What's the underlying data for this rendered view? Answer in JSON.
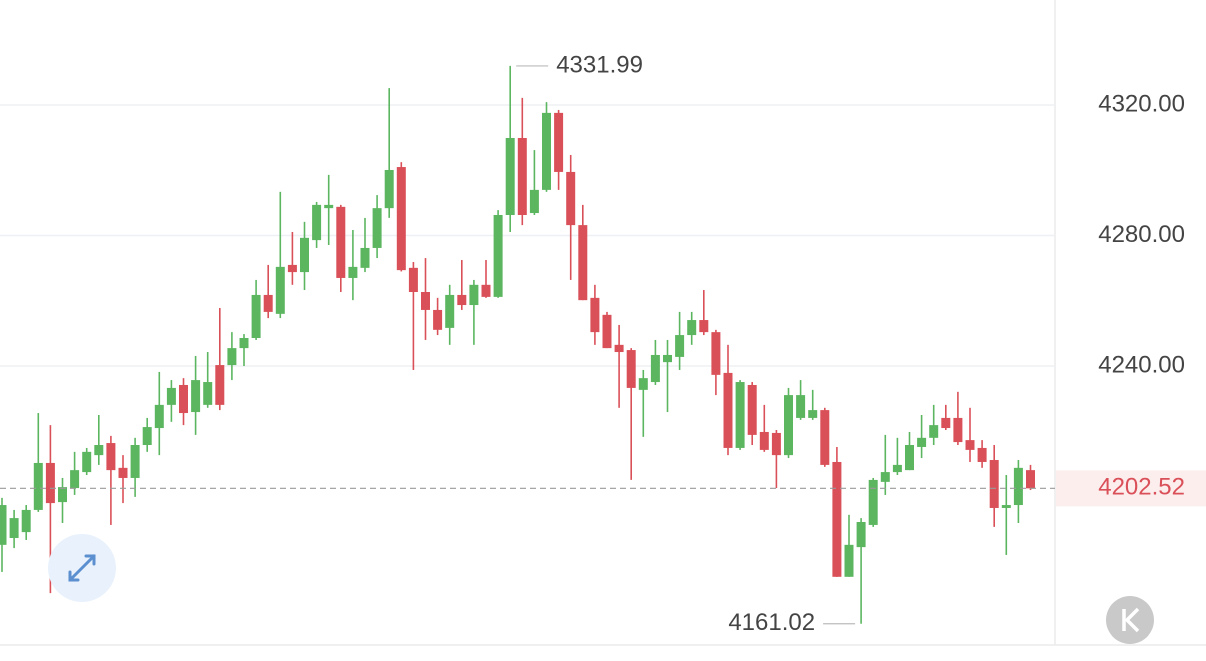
{
  "chart_data": {
    "type": "candlestick",
    "open": [
      4185.2,
      4187.3,
      4189.1,
      4195.9,
      4210.3,
      4198.3,
      4202.6,
      4207.5,
      4212.7,
      4216.4,
      4208.8,
      4205.7,
      4215.8,
      4221.0,
      4228.1,
      4234.2,
      4225.9,
      4228.1,
      4240.3,
      4240.3,
      4245.5,
      4248.6,
      4261.8,
      4256.0,
      4271.0,
      4268.8,
      4278.6,
      4288.4,
      4288.8,
      4267.0,
      4270.1,
      4276.2,
      4288.4,
      4301.0,
      4270.1,
      4262.7,
      4257.2,
      4251.7,
      4261.8,
      4258.7,
      4264.9,
      4261.2,
      4286.3,
      4309.9,
      4286.9,
      4294.0,
      4317.6,
      4299.5,
      4283.2,
      4260.9,
      4255.7,
      4246.5,
      4244.9,
      4232.7,
      4235.1,
      4241.2,
      4242.8,
      4249.5,
      4254.1,
      4250.4,
      4237.9,
      4214.9,
      4234.2,
      4219.8,
      4219.5,
      4212.7,
      4224.1,
      4224.1,
      4226.5,
      4210.6,
      4175.4,
      4184.5,
      4191.3,
      4204.5,
      4207.5,
      4208.1,
      4215.2,
      4218.0,
      4224.1,
      4224.1,
      4217.3,
      4214.9,
      4211.2,
      4196.5,
      4197.4,
      4208.1
    ],
    "high": [
      4199.6,
      4195.9,
      4197.4,
      4225.6,
      4221.9,
      4205.7,
      4213.7,
      4214.9,
      4225.0,
      4218.6,
      4212.7,
      4218.0,
      4224.1,
      4238.2,
      4235.7,
      4236.3,
      4243.1,
      4244.3,
      4257.8,
      4250.4,
      4249.8,
      4266.4,
      4271.0,
      4293.4,
      4281.1,
      4284.2,
      4290.3,
      4298.6,
      4289.4,
      4281.7,
      4285.4,
      4292.4,
      4325.2,
      4302.5,
      4271.9,
      4273.1,
      4260.9,
      4264.9,
      4272.5,
      4266.4,
      4272.5,
      4287.8,
      4331.99,
      4322.2,
      4306.2,
      4320.9,
      4318.5,
      4304.7,
      4289.4,
      4264.9,
      4256.6,
      4252.6,
      4245.5,
      4238.8,
      4248.0,
      4248.0,
      4256.6,
      4256.6,
      4263.3,
      4251.1,
      4246.5,
      4235.7,
      4235.1,
      4228.1,
      4220.4,
      4233.3,
      4235.7,
      4232.7,
      4227.2,
      4215.2,
      4194.4,
      4193.4,
      4205.7,
      4218.9,
      4218.0,
      4219.8,
      4225.0,
      4228.1,
      4228.1,
      4232.1,
      4227.2,
      4217.3,
      4215.8,
      4206.6,
      4211.2,
      4209.7
    ],
    "low": [
      4176.9,
      4184.2,
      4186.7,
      4195.3,
      4170.4,
      4191.9,
      4200.5,
      4206.6,
      4209.7,
      4191.3,
      4198.0,
      4199.9,
      4213.7,
      4212.7,
      4222.9,
      4221.9,
      4218.9,
      4227.2,
      4226.5,
      4235.7,
      4240.0,
      4248.0,
      4254.7,
      4254.7,
      4264.9,
      4263.3,
      4276.2,
      4277.1,
      4262.7,
      4260.2,
      4268.8,
      4273.1,
      4285.4,
      4269.0,
      4238.8,
      4248.0,
      4249.5,
      4246.5,
      4257.2,
      4246.5,
      4260.9,
      4260.9,
      4281.1,
      4283.2,
      4286.3,
      4293.4,
      4294.0,
      4266.4,
      4260.2,
      4246.5,
      4245.5,
      4227.2,
      4205.1,
      4218.3,
      4234.2,
      4225.9,
      4238.8,
      4246.5,
      4249.5,
      4231.1,
      4212.7,
      4214.3,
      4215.8,
      4213.7,
      4202.6,
      4211.8,
      4223.5,
      4223.5,
      4209.1,
      4175.4,
      4175.4,
      4161.02,
      4190.7,
      4200.5,
      4206.6,
      4208.1,
      4211.8,
      4215.8,
      4220.4,
      4215.8,
      4210.6,
      4208.8,
      4190.7,
      4182.1,
      4191.9,
      4202.0
    ],
    "close": [
      4197.4,
      4193.4,
      4195.9,
      4210.3,
      4198.0,
      4202.9,
      4208.1,
      4213.7,
      4215.8,
      4208.1,
      4205.7,
      4215.8,
      4221.3,
      4228.1,
      4233.3,
      4225.6,
      4235.7,
      4235.1,
      4228.1,
      4245.5,
      4248.6,
      4261.8,
      4256.6,
      4270.4,
      4268.8,
      4279.3,
      4289.4,
      4289.4,
      4267.0,
      4270.4,
      4276.2,
      4288.4,
      4300.1,
      4269.4,
      4262.7,
      4257.2,
      4251.1,
      4261.8,
      4258.7,
      4264.9,
      4261.2,
      4286.3,
      4309.9,
      4286.3,
      4294.0,
      4317.6,
      4299.5,
      4283.2,
      4260.2,
      4250.4,
      4245.5,
      4244.3,
      4233.3,
      4236.3,
      4243.4,
      4243.4,
      4249.5,
      4254.1,
      4250.4,
      4237.3,
      4214.9,
      4235.1,
      4218.9,
      4214.3,
      4212.7,
      4231.1,
      4231.1,
      4226.5,
      4209.7,
      4175.4,
      4185.2,
      4192.2,
      4205.1,
      4207.5,
      4209.7,
      4215.8,
      4218.0,
      4221.9,
      4221.0,
      4216.7,
      4214.3,
      4210.6,
      4196.5,
      4197.4,
      4208.8,
      4202.52
    ],
    "up_color": "#5cb660",
    "down_color": "#da5058",
    "ylim": [
      4154.5,
      4352.2
    ],
    "yticks": [
      {
        "value": 4320,
        "label": "4320.00"
      },
      {
        "value": 4280,
        "label": "4280.00"
      },
      {
        "value": 4240,
        "label": "4240.00"
      }
    ],
    "grid": true
  }
}
